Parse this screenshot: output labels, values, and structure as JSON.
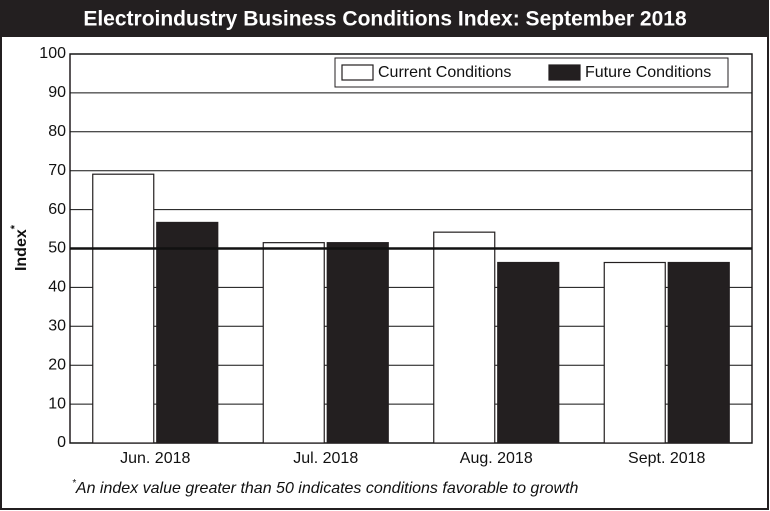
{
  "chart_data": {
    "type": "bar",
    "title": "Electroindustry Business Conditions Index: September 2018",
    "y_label": "Index",
    "note_marker": "*",
    "note": "An index value greater than 50 indicates conditions favorable to growth",
    "categories": [
      "Jun. 2018",
      "Jul. 2018",
      "Aug. 2018",
      "Sept. 2018"
    ],
    "series": [
      {
        "name": "Current Conditions",
        "color": "#ffffff",
        "values": [
          69.1,
          51.5,
          54.2,
          46.4
        ]
      },
      {
        "name": "Future Conditions",
        "color": "#231f20",
        "values": [
          56.7,
          51.5,
          46.4,
          46.4
        ]
      }
    ],
    "ylim": [
      0,
      100
    ],
    "yticks": [
      0,
      10,
      20,
      30,
      40,
      50,
      60,
      70,
      80,
      90,
      100
    ],
    "grid": true,
    "reference_line": 50,
    "legend": "top-right"
  }
}
